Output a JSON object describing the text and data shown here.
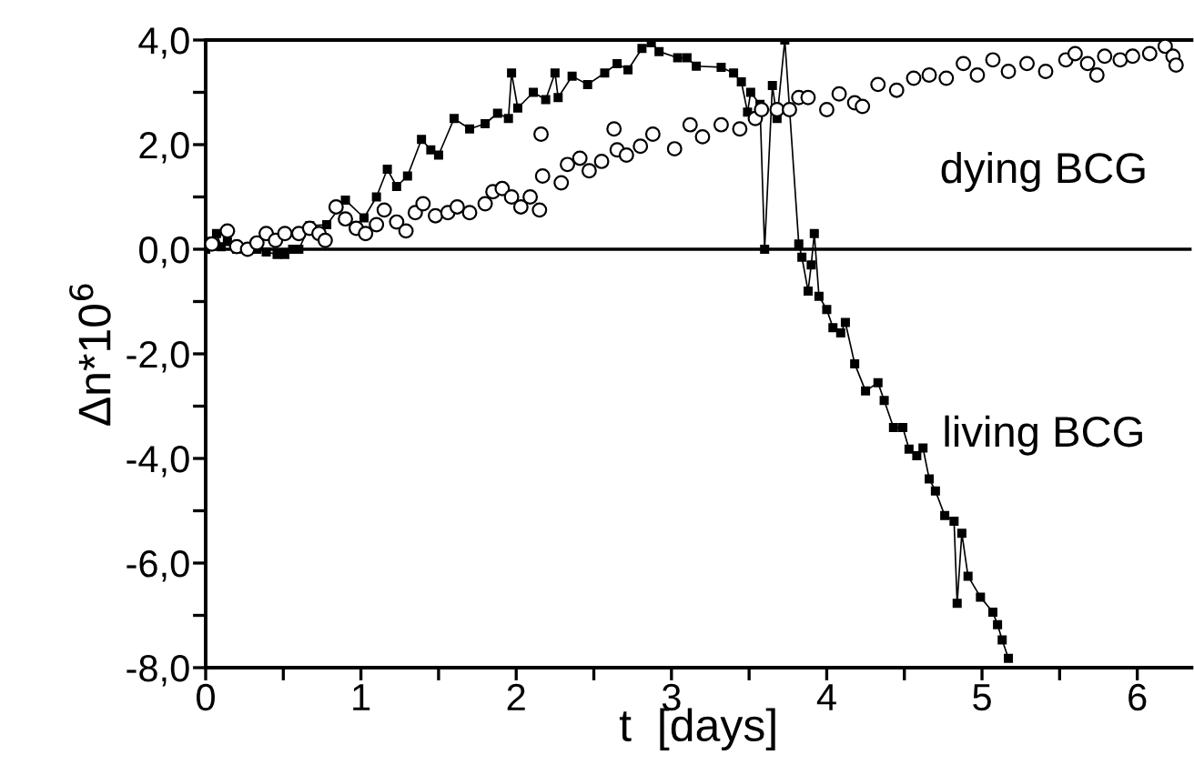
{
  "chart_data": {
    "type": "line",
    "xlabel": "t  [days]",
    "ylabel": "Δn*10$^{6}$",
    "xlim": [
      0,
      6.35
    ],
    "ylim": [
      -8,
      4
    ],
    "xticks": [
      0,
      {
        "value": 0.5,
        "label": null
      },
      1,
      {
        "value": 1.5,
        "label": null
      },
      2,
      {
        "value": 2.5,
        "label": null
      },
      3,
      {
        "value": 3.5,
        "label": null
      },
      4,
      {
        "value": 4.5,
        "label": null
      },
      5,
      {
        "value": 5.5,
        "label": null
      },
      6
    ],
    "yticks": [
      {
        "value": -8,
        "label": "-8,0"
      },
      {
        "value": -7,
        "label": null
      },
      {
        "value": -6,
        "label": "-6,0"
      },
      {
        "value": -5,
        "label": null
      },
      {
        "value": -4,
        "label": "-4,0"
      },
      {
        "value": -3,
        "label": null
      },
      {
        "value": -2,
        "label": "-2,0"
      },
      {
        "value": -1,
        "label": null
      },
      {
        "value": 0,
        "label": "0,0"
      },
      {
        "value": 1,
        "label": null
      },
      {
        "value": 2,
        "label": "2,0"
      },
      {
        "value": 3,
        "label": null
      },
      {
        "value": 4,
        "label": "4,0"
      }
    ],
    "grid": false,
    "legend": false,
    "ref_lines": [
      {
        "axis": "y",
        "value": 0,
        "color": "#000000",
        "line_style": "solid"
      }
    ],
    "series": [
      {
        "name": "living BCG",
        "marker": "square",
        "line_style": "solid",
        "color": "#000000",
        "x": [
          0,
          0.02,
          0.07,
          0.1,
          0.14,
          0.2,
          0.27,
          0.33,
          0.39,
          0.46,
          0.51,
          0.56,
          0.6,
          0.67,
          0.78,
          0.9,
          1.02,
          1.1,
          1.17,
          1.23,
          1.3,
          1.39,
          1.45,
          1.5,
          1.6,
          1.7,
          1.8,
          1.88,
          1.95,
          1.97,
          2.01,
          2.11,
          2.19,
          2.25,
          2.27,
          2.36,
          2.46,
          2.57,
          2.65,
          2.72,
          2.81,
          2.87,
          2.92,
          3.04,
          3.1,
          3.16,
          3.32,
          3.4,
          3.45,
          3.49,
          3.51,
          3.57,
          3.6,
          3.65,
          3.68,
          3.73,
          3.82,
          3.84,
          3.88,
          3.9,
          3.92,
          3.95,
          4.0,
          4.04,
          4.09,
          4.12,
          4.18,
          4.25,
          4.33,
          4.37,
          4.43,
          4.49,
          4.53,
          4.58,
          4.62,
          4.66,
          4.7,
          4.76,
          4.82,
          4.84,
          4.87,
          4.91,
          4.99,
          5.07,
          5.1,
          5.13,
          5.17
        ],
        "values": [
          0,
          0.15,
          0.3,
          0.05,
          0.15,
          0,
          0,
          0,
          -0.05,
          -0.1,
          -0.1,
          0,
          0,
          0.45,
          0.47,
          0.94,
          0.6,
          1.0,
          1.53,
          1.2,
          1.4,
          2.1,
          1.9,
          1.8,
          2.5,
          2.3,
          2.4,
          2.6,
          2.5,
          3.37,
          2.7,
          3.0,
          2.86,
          3.37,
          2.9,
          3.31,
          3.15,
          3.37,
          3.55,
          3.43,
          3.84,
          3.95,
          3.78,
          3.66,
          3.66,
          3.5,
          3.48,
          3.37,
          3.2,
          2.62,
          3.0,
          2.77,
          0,
          3.13,
          2.5,
          4.0,
          0.1,
          -0.15,
          -0.8,
          -0.3,
          0.3,
          -0.9,
          -1.15,
          -1.5,
          -1.6,
          -1.4,
          -2.19,
          -2.71,
          -2.55,
          -2.89,
          -3.41,
          -3.41,
          -3.82,
          -3.95,
          -3.8,
          -4.39,
          -4.62,
          -5.09,
          -5.2,
          -6.77,
          -5.43,
          -6.25,
          -6.65,
          -6.94,
          -7.18,
          -7.47,
          -7.82
        ]
      },
      {
        "name": "dying BCG",
        "type": "scatter",
        "marker": "circle",
        "color": "#000000",
        "x": [
          0.04,
          0.14,
          0.2,
          0.27,
          0.33,
          0.39,
          0.45,
          0.51,
          0.6,
          0.67,
          0.73,
          0.77,
          0.84,
          0.9,
          0.97,
          1.03,
          1.1,
          1.15,
          1.23,
          1.29,
          1.35,
          1.4,
          1.48,
          1.56,
          1.62,
          1.7,
          1.8,
          1.85,
          1.91,
          1.97,
          2.03,
          2.09,
          2.15,
          2.16,
          2.17,
          2.29,
          2.33,
          2.41,
          2.47,
          2.55,
          2.63,
          2.65,
          2.71,
          2.8,
          2.88,
          3.02,
          3.12,
          3.2,
          3.32,
          3.44,
          3.54,
          3.58,
          3.68,
          3.76,
          3.82,
          3.88,
          4.0,
          4.08,
          4.18,
          4.23,
          4.33,
          4.45,
          4.56,
          4.66,
          4.77,
          4.88,
          4.97,
          5.07,
          5.17,
          5.29,
          5.41,
          5.54,
          5.6,
          5.68,
          5.74,
          5.79,
          5.89,
          5.97,
          6.08,
          6.18,
          6.23,
          6.25
        ],
        "values": [
          0.1,
          0.35,
          0.05,
          0,
          0.12,
          0.3,
          0.17,
          0.3,
          0.3,
          0.4,
          0.3,
          0.17,
          0.81,
          0.58,
          0.4,
          0.3,
          0.47,
          0.75,
          0.52,
          0.35,
          0.7,
          0.87,
          0.64,
          0.7,
          0.81,
          0.7,
          0.87,
          1.1,
          1.16,
          1.0,
          0.81,
          1.0,
          0.75,
          2.2,
          1.4,
          1.27,
          1.62,
          1.74,
          1.5,
          1.68,
          2.3,
          1.9,
          1.8,
          1.97,
          2.2,
          1.92,
          2.38,
          2.15,
          2.38,
          2.3,
          2.5,
          2.67,
          2.67,
          2.67,
          2.9,
          2.9,
          2.67,
          2.97,
          2.8,
          2.73,
          3.15,
          3.04,
          3.27,
          3.33,
          3.27,
          3.55,
          3.33,
          3.62,
          3.4,
          3.55,
          3.4,
          3.62,
          3.74,
          3.55,
          3.33,
          3.69,
          3.62,
          3.69,
          3.74,
          3.88,
          3.69,
          3.52
        ]
      }
    ]
  }
}
